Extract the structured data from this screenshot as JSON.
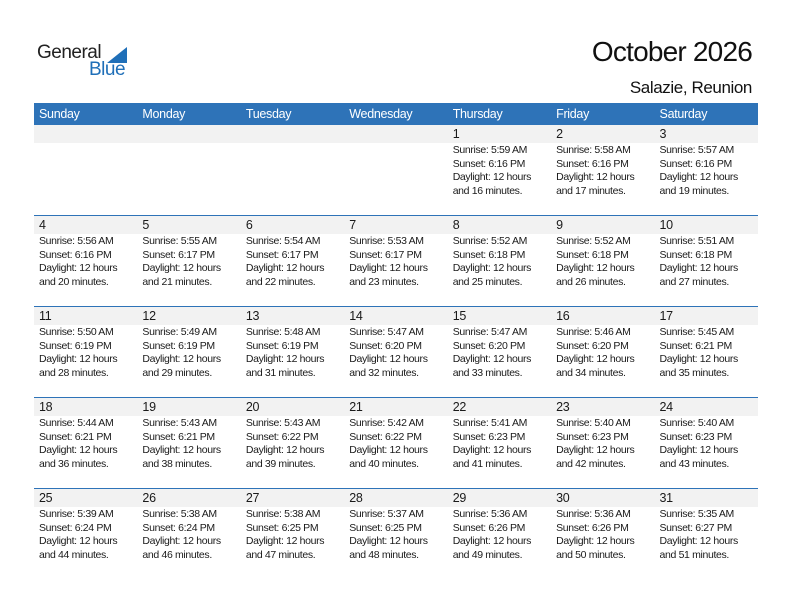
{
  "logo": {
    "word1": "General",
    "word2": "Blue",
    "color": "#1f6fb8"
  },
  "header": {
    "title": "October 2026",
    "location": "Salazie, Reunion"
  },
  "accent_color": "#2e73b8",
  "weekdays": [
    "Sunday",
    "Monday",
    "Tuesday",
    "Wednesday",
    "Thursday",
    "Friday",
    "Saturday"
  ],
  "weeks": [
    [
      null,
      null,
      null,
      null,
      {
        "day": "1",
        "sunrise": "Sunrise: 5:59 AM",
        "sunset": "Sunset: 6:16 PM",
        "daylight1": "Daylight: 12 hours",
        "daylight2": "and 16 minutes."
      },
      {
        "day": "2",
        "sunrise": "Sunrise: 5:58 AM",
        "sunset": "Sunset: 6:16 PM",
        "daylight1": "Daylight: 12 hours",
        "daylight2": "and 17 minutes."
      },
      {
        "day": "3",
        "sunrise": "Sunrise: 5:57 AM",
        "sunset": "Sunset: 6:16 PM",
        "daylight1": "Daylight: 12 hours",
        "daylight2": "and 19 minutes."
      }
    ],
    [
      {
        "day": "4",
        "sunrise": "Sunrise: 5:56 AM",
        "sunset": "Sunset: 6:16 PM",
        "daylight1": "Daylight: 12 hours",
        "daylight2": "and 20 minutes."
      },
      {
        "day": "5",
        "sunrise": "Sunrise: 5:55 AM",
        "sunset": "Sunset: 6:17 PM",
        "daylight1": "Daylight: 12 hours",
        "daylight2": "and 21 minutes."
      },
      {
        "day": "6",
        "sunrise": "Sunrise: 5:54 AM",
        "sunset": "Sunset: 6:17 PM",
        "daylight1": "Daylight: 12 hours",
        "daylight2": "and 22 minutes."
      },
      {
        "day": "7",
        "sunrise": "Sunrise: 5:53 AM",
        "sunset": "Sunset: 6:17 PM",
        "daylight1": "Daylight: 12 hours",
        "daylight2": "and 23 minutes."
      },
      {
        "day": "8",
        "sunrise": "Sunrise: 5:52 AM",
        "sunset": "Sunset: 6:18 PM",
        "daylight1": "Daylight: 12 hours",
        "daylight2": "and 25 minutes."
      },
      {
        "day": "9",
        "sunrise": "Sunrise: 5:52 AM",
        "sunset": "Sunset: 6:18 PM",
        "daylight1": "Daylight: 12 hours",
        "daylight2": "and 26 minutes."
      },
      {
        "day": "10",
        "sunrise": "Sunrise: 5:51 AM",
        "sunset": "Sunset: 6:18 PM",
        "daylight1": "Daylight: 12 hours",
        "daylight2": "and 27 minutes."
      }
    ],
    [
      {
        "day": "11",
        "sunrise": "Sunrise: 5:50 AM",
        "sunset": "Sunset: 6:19 PM",
        "daylight1": "Daylight: 12 hours",
        "daylight2": "and 28 minutes."
      },
      {
        "day": "12",
        "sunrise": "Sunrise: 5:49 AM",
        "sunset": "Sunset: 6:19 PM",
        "daylight1": "Daylight: 12 hours",
        "daylight2": "and 29 minutes."
      },
      {
        "day": "13",
        "sunrise": "Sunrise: 5:48 AM",
        "sunset": "Sunset: 6:19 PM",
        "daylight1": "Daylight: 12 hours",
        "daylight2": "and 31 minutes."
      },
      {
        "day": "14",
        "sunrise": "Sunrise: 5:47 AM",
        "sunset": "Sunset: 6:20 PM",
        "daylight1": "Daylight: 12 hours",
        "daylight2": "and 32 minutes."
      },
      {
        "day": "15",
        "sunrise": "Sunrise: 5:47 AM",
        "sunset": "Sunset: 6:20 PM",
        "daylight1": "Daylight: 12 hours",
        "daylight2": "and 33 minutes."
      },
      {
        "day": "16",
        "sunrise": "Sunrise: 5:46 AM",
        "sunset": "Sunset: 6:20 PM",
        "daylight1": "Daylight: 12 hours",
        "daylight2": "and 34 minutes."
      },
      {
        "day": "17",
        "sunrise": "Sunrise: 5:45 AM",
        "sunset": "Sunset: 6:21 PM",
        "daylight1": "Daylight: 12 hours",
        "daylight2": "and 35 minutes."
      }
    ],
    [
      {
        "day": "18",
        "sunrise": "Sunrise: 5:44 AM",
        "sunset": "Sunset: 6:21 PM",
        "daylight1": "Daylight: 12 hours",
        "daylight2": "and 36 minutes."
      },
      {
        "day": "19",
        "sunrise": "Sunrise: 5:43 AM",
        "sunset": "Sunset: 6:21 PM",
        "daylight1": "Daylight: 12 hours",
        "daylight2": "and 38 minutes."
      },
      {
        "day": "20",
        "sunrise": "Sunrise: 5:43 AM",
        "sunset": "Sunset: 6:22 PM",
        "daylight1": "Daylight: 12 hours",
        "daylight2": "and 39 minutes."
      },
      {
        "day": "21",
        "sunrise": "Sunrise: 5:42 AM",
        "sunset": "Sunset: 6:22 PM",
        "daylight1": "Daylight: 12 hours",
        "daylight2": "and 40 minutes."
      },
      {
        "day": "22",
        "sunrise": "Sunrise: 5:41 AM",
        "sunset": "Sunset: 6:23 PM",
        "daylight1": "Daylight: 12 hours",
        "daylight2": "and 41 minutes."
      },
      {
        "day": "23",
        "sunrise": "Sunrise: 5:40 AM",
        "sunset": "Sunset: 6:23 PM",
        "daylight1": "Daylight: 12 hours",
        "daylight2": "and 42 minutes."
      },
      {
        "day": "24",
        "sunrise": "Sunrise: 5:40 AM",
        "sunset": "Sunset: 6:23 PM",
        "daylight1": "Daylight: 12 hours",
        "daylight2": "and 43 minutes."
      }
    ],
    [
      {
        "day": "25",
        "sunrise": "Sunrise: 5:39 AM",
        "sunset": "Sunset: 6:24 PM",
        "daylight1": "Daylight: 12 hours",
        "daylight2": "and 44 minutes."
      },
      {
        "day": "26",
        "sunrise": "Sunrise: 5:38 AM",
        "sunset": "Sunset: 6:24 PM",
        "daylight1": "Daylight: 12 hours",
        "daylight2": "and 46 minutes."
      },
      {
        "day": "27",
        "sunrise": "Sunrise: 5:38 AM",
        "sunset": "Sunset: 6:25 PM",
        "daylight1": "Daylight: 12 hours",
        "daylight2": "and 47 minutes."
      },
      {
        "day": "28",
        "sunrise": "Sunrise: 5:37 AM",
        "sunset": "Sunset: 6:25 PM",
        "daylight1": "Daylight: 12 hours",
        "daylight2": "and 48 minutes."
      },
      {
        "day": "29",
        "sunrise": "Sunrise: 5:36 AM",
        "sunset": "Sunset: 6:26 PM",
        "daylight1": "Daylight: 12 hours",
        "daylight2": "and 49 minutes."
      },
      {
        "day": "30",
        "sunrise": "Sunrise: 5:36 AM",
        "sunset": "Sunset: 6:26 PM",
        "daylight1": "Daylight: 12 hours",
        "daylight2": "and 50 minutes."
      },
      {
        "day": "31",
        "sunrise": "Sunrise: 5:35 AM",
        "sunset": "Sunset: 6:27 PM",
        "daylight1": "Daylight: 12 hours",
        "daylight2": "and 51 minutes."
      }
    ]
  ]
}
